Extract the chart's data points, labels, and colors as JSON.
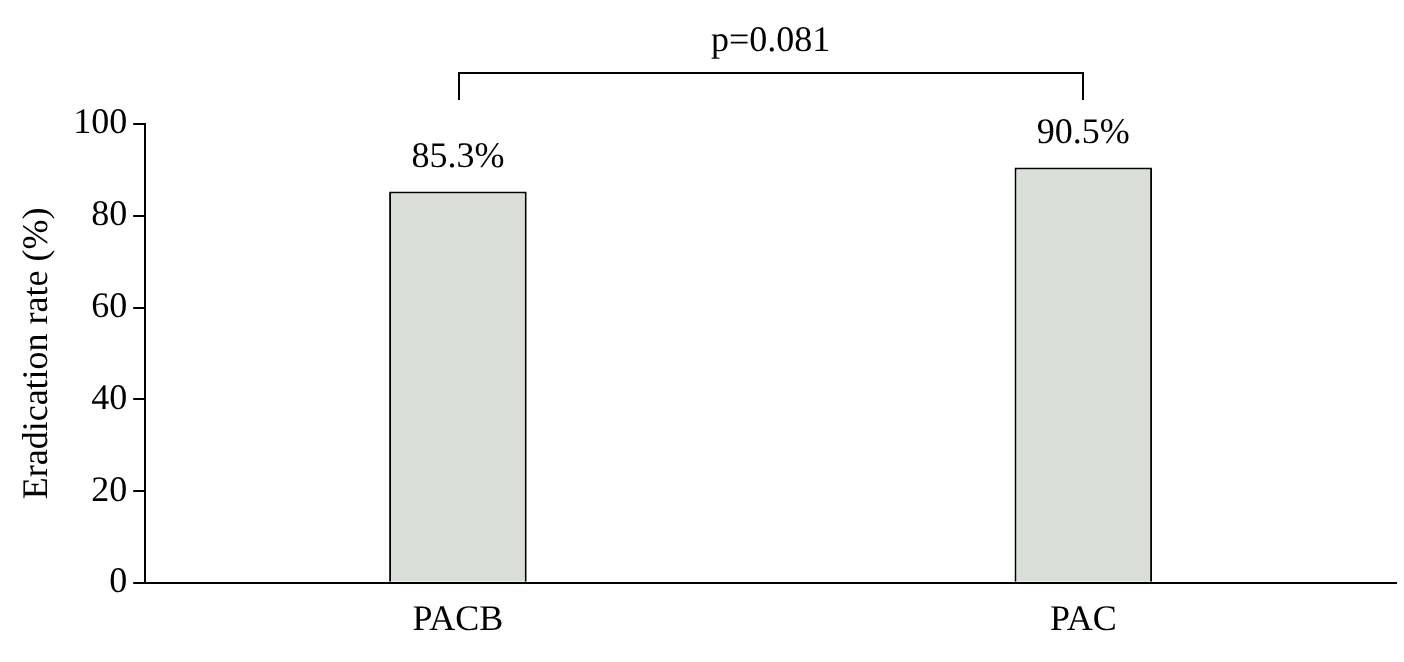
{
  "chart_data": {
    "type": "bar",
    "ylabel": "Eradication rate (%)",
    "categories": [
      "PACB",
      "PAC"
    ],
    "values": [
      85.3,
      90.5
    ],
    "color": "#d9dfd6",
    "value_labels": [
      "85.3%",
      "90.5%"
    ],
    "ylim": [
      0,
      100
    ],
    "yticks": [
      0,
      20,
      40,
      60,
      80,
      100
    ],
    "grid": false,
    "legend": false,
    "annotations": [
      "p=0.081"
    ]
  }
}
